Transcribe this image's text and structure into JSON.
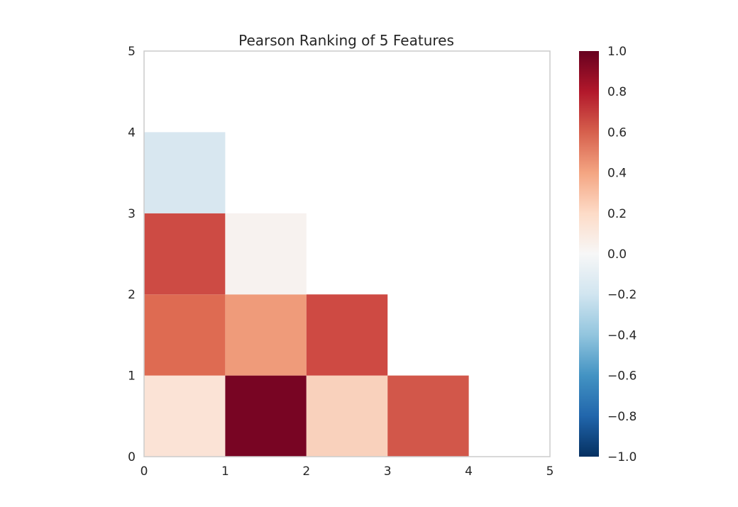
{
  "chart_data": {
    "type": "heatmap",
    "title": "Pearson Ranking of 5 Features",
    "xlabel": "",
    "ylabel": "",
    "xlim": [
      0,
      5
    ],
    "ylim": [
      0,
      5
    ],
    "xticks": [
      "0",
      "1",
      "2",
      "3",
      "4",
      "5"
    ],
    "yticks": [
      "0",
      "1",
      "2",
      "3",
      "4",
      "5"
    ],
    "grid": false,
    "colormap": "RdBu_r",
    "cells": [
      {
        "x": 0,
        "y": 0,
        "value": 0.15,
        "color": "#fbe3d6"
      },
      {
        "x": 1,
        "y": 0,
        "value": 1.0,
        "color": "#780523"
      },
      {
        "x": 2,
        "y": 0,
        "value": 0.25,
        "color": "#f9d1bc"
      },
      {
        "x": 3,
        "y": 0,
        "value": 0.63,
        "color": "#d2574a"
      },
      {
        "x": 0,
        "y": 1,
        "value": 0.57,
        "color": "#de6b52"
      },
      {
        "x": 1,
        "y": 1,
        "value": 0.43,
        "color": "#ef9b7a"
      },
      {
        "x": 2,
        "y": 1,
        "value": 0.67,
        "color": "#ce4a43"
      },
      {
        "x": 0,
        "y": 2,
        "value": 0.67,
        "color": "#cd4b44"
      },
      {
        "x": 1,
        "y": 2,
        "value": 0.03,
        "color": "#f7f2ef"
      },
      {
        "x": 0,
        "y": 3,
        "value": -0.17,
        "color": "#d8e7f0"
      }
    ],
    "colorbar": {
      "min": -1.0,
      "max": 1.0,
      "ticks": [
        "1.0",
        "0.8",
        "0.6",
        "0.4",
        "0.2",
        "0.0",
        "−0.2",
        "−0.4",
        "−0.6",
        "−0.8",
        "−1.0"
      ],
      "stops": [
        {
          "value": -1.0,
          "color": "#053061"
        },
        {
          "value": -0.8,
          "color": "#2166ac"
        },
        {
          "value": -0.6,
          "color": "#4393c3"
        },
        {
          "value": -0.4,
          "color": "#92c5de"
        },
        {
          "value": -0.2,
          "color": "#d1e5f0"
        },
        {
          "value": 0.0,
          "color": "#f7f7f7"
        },
        {
          "value": 0.2,
          "color": "#fddbc7"
        },
        {
          "value": 0.4,
          "color": "#f4a582"
        },
        {
          "value": 0.6,
          "color": "#d6604d"
        },
        {
          "value": 0.8,
          "color": "#b2182b"
        },
        {
          "value": 1.0,
          "color": "#67001f"
        }
      ]
    }
  }
}
